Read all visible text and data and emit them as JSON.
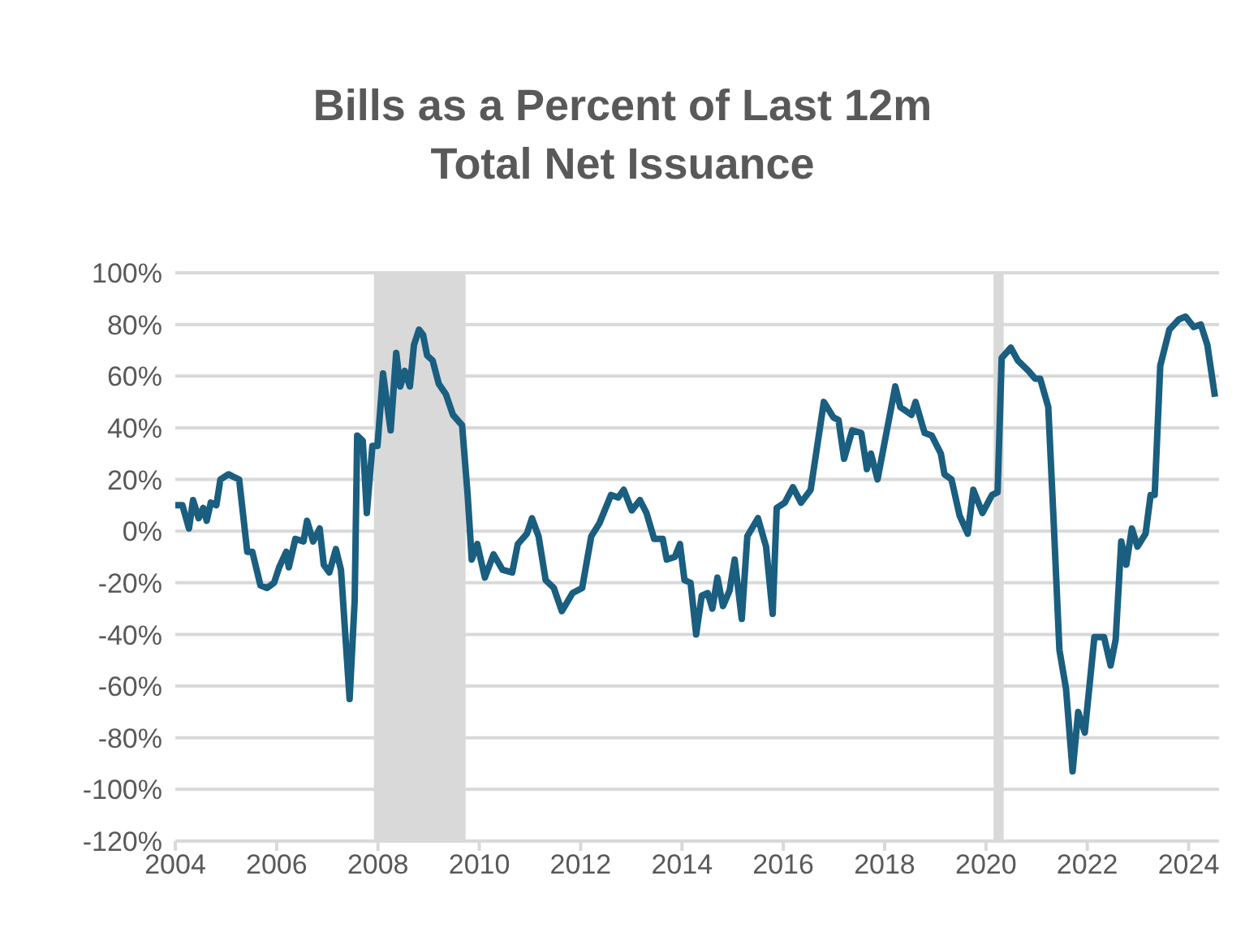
{
  "chart_data": {
    "type": "line",
    "title": "Bills as a Percent of Last 12m Total Net Issuance",
    "x": [
      2004.0,
      2004.14,
      2004.27,
      2004.35,
      2004.46,
      2004.55,
      2004.62,
      2004.7,
      2004.81,
      2004.89,
      2005.05,
      2005.15,
      2005.26,
      2005.42,
      2005.52,
      2005.68,
      2005.81,
      2005.95,
      2006.05,
      2006.19,
      2006.24,
      2006.37,
      2006.53,
      2006.6,
      2006.72,
      2006.85,
      2006.93,
      2007.04,
      2007.17,
      2007.27,
      2007.44,
      2007.54,
      2007.59,
      2007.7,
      2007.78,
      2007.89,
      2007.99,
      2008.1,
      2008.25,
      2008.36,
      2008.44,
      2008.53,
      2008.63,
      2008.71,
      2008.81,
      2008.89,
      2008.97,
      2009.08,
      2009.2,
      2009.34,
      2009.48,
      2009.66,
      2009.77,
      2009.85,
      2009.96,
      2010.11,
      2010.28,
      2010.46,
      2010.65,
      2010.76,
      2010.94,
      2011.04,
      2011.17,
      2011.31,
      2011.47,
      2011.63,
      2011.84,
      2012.03,
      2012.21,
      2012.37,
      2012.6,
      2012.74,
      2012.85,
      2013.01,
      2013.17,
      2013.3,
      2013.45,
      2013.62,
      2013.7,
      2013.86,
      2013.96,
      2014.05,
      2014.17,
      2014.28,
      2014.39,
      2014.51,
      2014.6,
      2014.7,
      2014.81,
      2014.94,
      2015.04,
      2015.18,
      2015.29,
      2015.5,
      2015.66,
      2015.79,
      2015.87,
      2016.03,
      2016.19,
      2016.35,
      2016.54,
      2016.8,
      2016.99,
      2017.09,
      2017.2,
      2017.36,
      2017.54,
      2017.65,
      2017.73,
      2017.86,
      2018.21,
      2018.31,
      2018.53,
      2018.61,
      2018.79,
      2018.93,
      2019.11,
      2019.18,
      2019.32,
      2019.48,
      2019.64,
      2019.75,
      2019.93,
      2020.12,
      2020.23,
      2020.31,
      2020.49,
      2020.63,
      2020.84,
      2020.97,
      2021.07,
      2021.23,
      2021.34,
      2021.45,
      2021.58,
      2021.71,
      2021.82,
      2021.95,
      2022.14,
      2022.33,
      2022.46,
      2022.56,
      2022.67,
      2022.77,
      2022.88,
      2022.99,
      2023.15,
      2023.25,
      2023.33,
      2023.44,
      2023.62,
      2023.81,
      2023.94,
      2024.1,
      2024.24,
      2024.37,
      2024.52
    ],
    "series": [
      {
        "color": "#1a5e80",
        "values": [
          10,
          10,
          1,
          12,
          5,
          9,
          4,
          11,
          10,
          20,
          22,
          21,
          20,
          -8,
          -8,
          -21,
          -22,
          -20,
          -14,
          -8,
          -14,
          -3,
          -4,
          4,
          -4,
          1,
          -13,
          -16,
          -7,
          -15,
          -65,
          -27,
          37,
          35,
          7,
          33,
          33,
          61,
          39,
          69,
          56,
          62,
          56,
          72,
          78,
          76,
          68,
          66,
          57,
          53,
          45,
          41,
          14,
          -11,
          -5,
          -18,
          -9,
          -15,
          -16,
          -5,
          -1,
          5,
          -2,
          -19,
          -22,
          -31,
          -24,
          -22,
          -2,
          3,
          14,
          13,
          16,
          8,
          12,
          7,
          -3,
          -3,
          -11,
          -10,
          -5,
          -19,
          -20,
          -40,
          -25,
          -24,
          -30,
          -18,
          -29,
          -23,
          -11,
          -34,
          -2,
          5,
          -6,
          -32,
          9,
          11,
          17,
          11,
          16,
          50,
          44,
          43,
          28,
          39,
          38,
          24,
          30,
          20,
          56,
          48,
          45,
          50,
          38,
          37,
          30,
          22,
          20,
          6,
          -1,
          16,
          7,
          14,
          15,
          67,
          71,
          66,
          62,
          59,
          59,
          48,
          2,
          -46,
          -61,
          -93,
          -70,
          -78,
          -41,
          -41,
          -52,
          -42,
          -4,
          -13,
          1,
          -6,
          -1,
          14,
          14,
          64,
          78,
          82,
          83,
          79,
          80,
          72,
          52
        ]
      }
    ],
    "xlim": [
      2004,
      2024.6
    ],
    "xticks": [
      2004,
      2006,
      2008,
      2010,
      2012,
      2014,
      2016,
      2018,
      2020,
      2022,
      2024
    ],
    "ylim": [
      -120,
      100
    ],
    "yticks": [
      {
        "value": -120,
        "label": "-120%"
      },
      {
        "value": -100,
        "label": "-100%"
      },
      {
        "value": -80,
        "label": "-80%"
      },
      {
        "value": -60,
        "label": "-60%"
      },
      {
        "value": -40,
        "label": "-40%"
      },
      {
        "value": -20,
        "label": "-20%"
      },
      {
        "value": 0,
        "label": "0%"
      },
      {
        "value": 20,
        "label": "20%"
      },
      {
        "value": 40,
        "label": "40%"
      },
      {
        "value": 60,
        "label": "60%"
      },
      {
        "value": 80,
        "label": "80%"
      },
      {
        "value": 100,
        "label": "100%"
      }
    ],
    "bands": [
      {
        "axis": "x",
        "from": 2007.92,
        "to": 2009.73,
        "color": "#d9d9d9"
      },
      {
        "axis": "x",
        "from": 2020.15,
        "to": 2020.35,
        "color": "#d9d9d9"
      }
    ],
    "grid": "y"
  }
}
